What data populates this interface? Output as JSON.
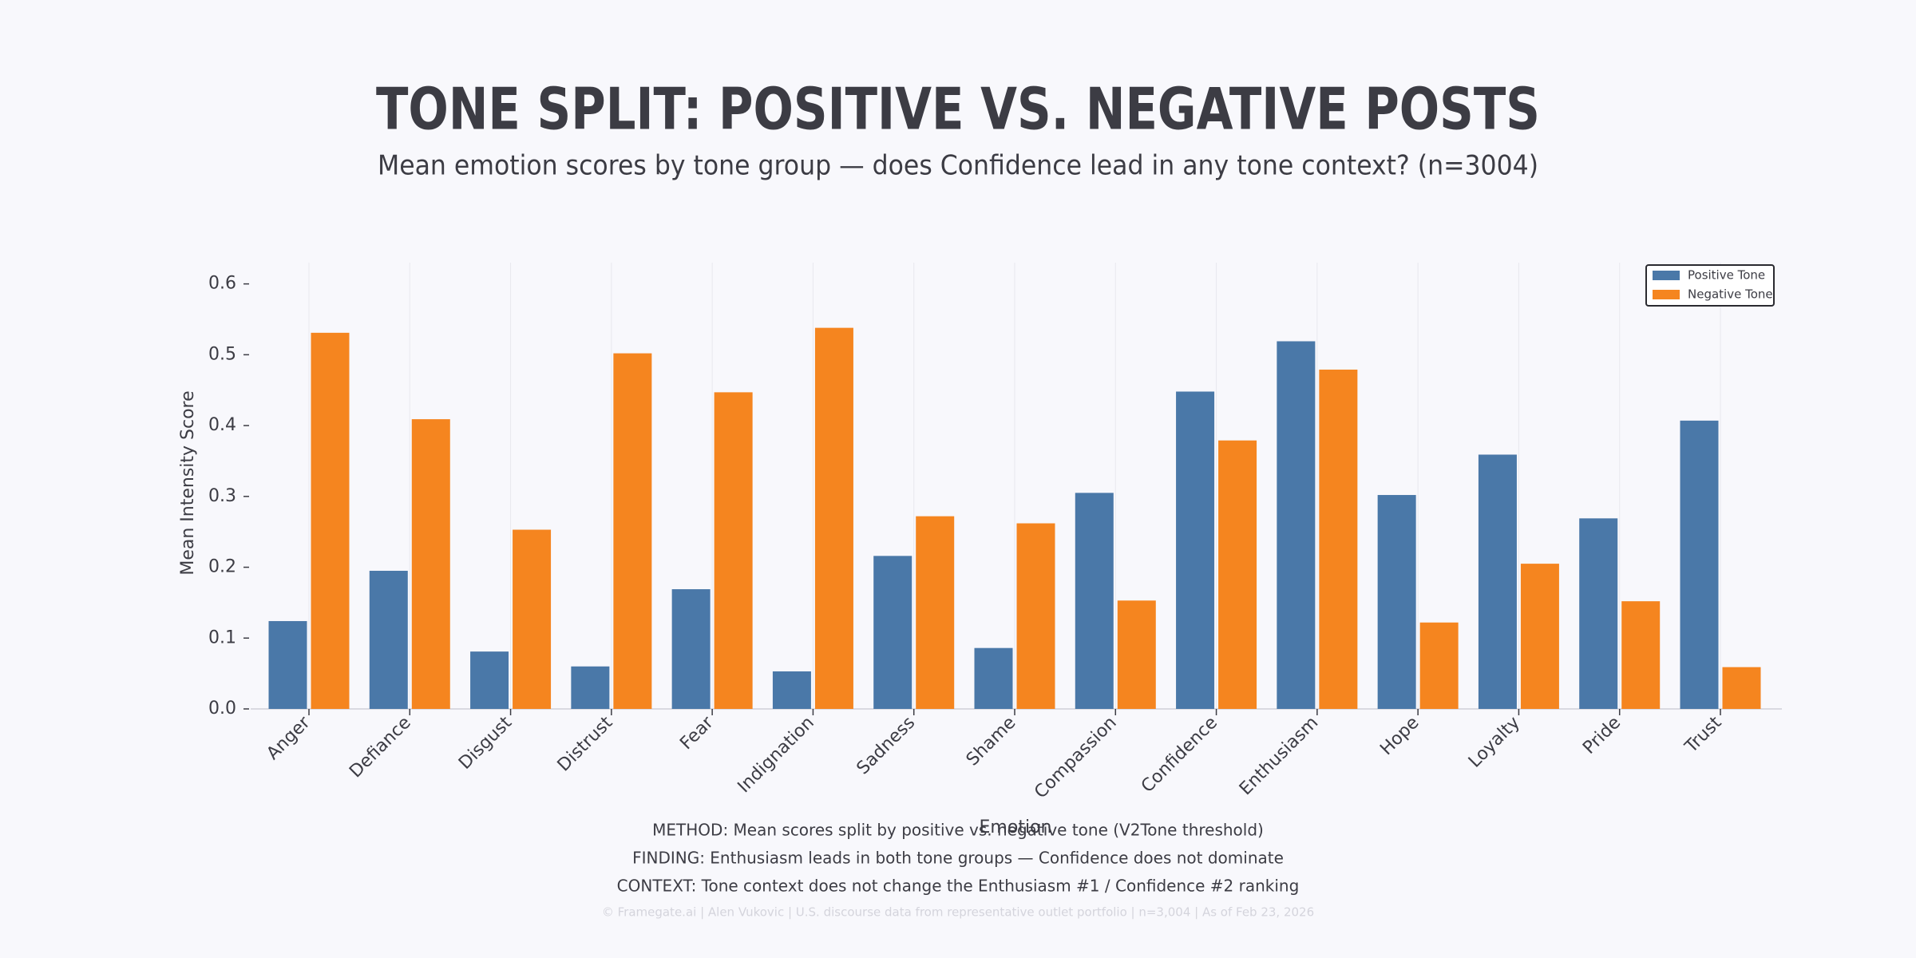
{
  "chart_data": {
    "type": "bar",
    "title": "TONE SPLIT: POSITIVE VS. NEGATIVE POSTS",
    "subtitle": "Mean emotion scores by tone group — does Confidence lead in any tone context? (n=3004)",
    "x_label": "Emotion",
    "y_label": "Mean Intensity Score",
    "categories": [
      "Anger",
      "Defiance",
      "Disgust",
      "Distrust",
      "Fear",
      "Indignation",
      "Sadness",
      "Shame",
      "Compassion",
      "Confidence",
      "Enthusiasm",
      "Hope",
      "Loyalty",
      "Pride",
      "Trust"
    ],
    "series": [
      {
        "name": "Positive Tone",
        "color": "#4a78a8",
        "values": [
          0.124,
          0.195,
          0.081,
          0.06,
          0.169,
          0.053,
          0.216,
          0.086,
          0.305,
          0.448,
          0.519,
          0.302,
          0.359,
          0.269,
          0.407
        ]
      },
      {
        "name": "Negative Tone",
        "color": "#f5851f",
        "values": [
          0.531,
          0.409,
          0.253,
          0.502,
          0.447,
          0.538,
          0.272,
          0.262,
          0.153,
          0.379,
          0.479,
          0.122,
          0.205,
          0.152,
          0.059
        ]
      }
    ],
    "ylim": [
      0,
      0.63
    ],
    "yticks": [
      {
        "value": 0,
        "label": "0.0"
      },
      0.1,
      0.2,
      0.3,
      0.4,
      0.5,
      0.6
    ],
    "grid": "x",
    "legend": "upper right",
    "notes": [
      "METHOD: Mean scores split by positive vs. negative tone (V2Tone threshold)",
      "FINDING: Enthusiasm leads in both tone groups — Confidence does not dominate",
      "CONTEXT: Tone context does not change the Enthusiasm #1 / Confidence #2 ranking"
    ],
    "footer": "© Framegate.ai | Alen Vukovic | U.S. discourse data from representative outlet portfolio | n=3,004 | As of Feb 23, 2026"
  }
}
